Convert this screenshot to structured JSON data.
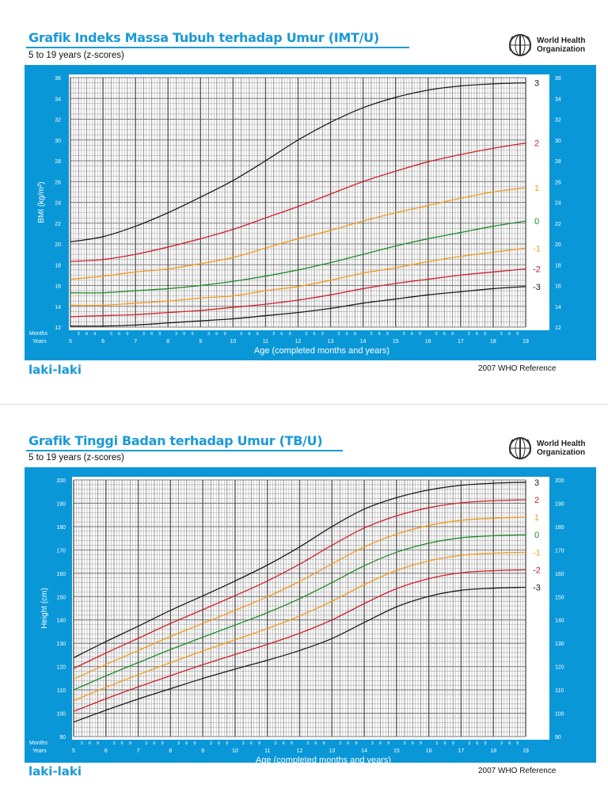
{
  "logo": {
    "org_line1": "World Health",
    "org_line2": "Organization"
  },
  "chart_data": [
    {
      "type": "line",
      "title": "Grafik Indeks Massa Tubuh terhadap Umur (IMT/U)",
      "subtitle": "5 to 19 years (z-scores)",
      "xlabel": "Age (completed months and years)",
      "ylabel": "BMI (kg/m²)",
      "months_label": "Months",
      "years_label": "Years",
      "month_ticks": [
        "3",
        "6",
        "9"
      ],
      "footer_left": "laki-laki",
      "footer_right": "2007 WHO Reference",
      "xlim": [
        5,
        19
      ],
      "ylim": [
        12,
        36
      ],
      "yticks": [
        12,
        14,
        16,
        18,
        20,
        22,
        24,
        26,
        28,
        30,
        32,
        34,
        36
      ],
      "xticks": [
        5,
        6,
        7,
        8,
        9,
        10,
        11,
        12,
        13,
        14,
        15,
        16,
        17,
        18,
        19
      ],
      "grid": true,
      "x": [
        5,
        6,
        7,
        8,
        9,
        10,
        11,
        12,
        13,
        14,
        15,
        16,
        17,
        18,
        19
      ],
      "series": [
        {
          "name": "3",
          "color": "#1a1a1a",
          "values": [
            20.2,
            20.7,
            21.7,
            23.0,
            24.5,
            26.1,
            28.0,
            30.0,
            31.7,
            33.1,
            34.1,
            34.8,
            35.2,
            35.4,
            35.5
          ]
        },
        {
          "name": "2",
          "color": "#d0202a",
          "values": [
            18.3,
            18.5,
            19.0,
            19.7,
            20.5,
            21.4,
            22.5,
            23.6,
            24.8,
            26.0,
            27.0,
            27.9,
            28.6,
            29.2,
            29.7
          ]
        },
        {
          "name": "1",
          "color": "#f39a1e",
          "values": [
            16.6,
            16.9,
            17.3,
            17.6,
            18.1,
            18.7,
            19.6,
            20.5,
            21.3,
            22.2,
            23.0,
            23.7,
            24.4,
            25.0,
            25.4
          ]
        },
        {
          "name": "0",
          "color": "#1f8a2e",
          "values": [
            15.3,
            15.3,
            15.5,
            15.7,
            16.0,
            16.4,
            16.9,
            17.5,
            18.2,
            19.0,
            19.8,
            20.5,
            21.1,
            21.7,
            22.2
          ]
        },
        {
          "name": "-1",
          "color": "#f39a1e",
          "values": [
            14.1,
            14.1,
            14.3,
            14.5,
            14.8,
            15.0,
            15.5,
            15.9,
            16.5,
            17.2,
            17.7,
            18.3,
            18.8,
            19.2,
            19.6
          ]
        },
        {
          "name": "-2",
          "color": "#d0202a",
          "values": [
            13.0,
            13.1,
            13.2,
            13.4,
            13.6,
            13.9,
            14.2,
            14.6,
            15.1,
            15.7,
            16.2,
            16.6,
            17.0,
            17.3,
            17.6
          ]
        },
        {
          "name": "-3",
          "color": "#1a1a1a",
          "values": [
            12.1,
            12.1,
            12.2,
            12.4,
            12.6,
            12.8,
            13.1,
            13.4,
            13.8,
            14.3,
            14.7,
            15.1,
            15.4,
            15.7,
            15.9
          ]
        }
      ]
    },
    {
      "type": "line",
      "title": "Grafik Tinggi Badan terhadap Umur (TB/U)",
      "subtitle": "5 to 19 years (z-scores)",
      "xlabel": "Age (completed months and years)",
      "ylabel": "Height (cm)",
      "months_label": "Months",
      "years_label": "Years",
      "month_ticks": [
        "3",
        "6",
        "9"
      ],
      "footer_left": "laki-laki",
      "footer_right": "2007 WHO Reference",
      "xlim": [
        5,
        19
      ],
      "ylim": [
        90,
        200
      ],
      "yticks": [
        90,
        100,
        110,
        120,
        130,
        140,
        150,
        160,
        170,
        180,
        190,
        200
      ],
      "xticks": [
        5,
        6,
        7,
        8,
        9,
        10,
        11,
        12,
        13,
        14,
        15,
        16,
        17,
        18,
        19
      ],
      "grid": true,
      "x": [
        5,
        6,
        7,
        8,
        9,
        10,
        11,
        12,
        13,
        14,
        15,
        16,
        17,
        18,
        19
      ],
      "series": [
        {
          "name": "3",
          "color": "#1a1a1a",
          "values": [
            123.8,
            130.7,
            137.3,
            144.1,
            150.3,
            156.7,
            163.5,
            171.3,
            180.0,
            187.5,
            192.4,
            195.7,
            197.7,
            198.6,
            199.0
          ]
        },
        {
          "name": "2",
          "color": "#d0202a",
          "values": [
            119.2,
            125.8,
            132.1,
            138.5,
            144.4,
            150.4,
            156.7,
            163.9,
            172.0,
            179.4,
            184.6,
            188.1,
            190.2,
            191.1,
            191.5
          ]
        },
        {
          "name": "1",
          "color": "#f39a1e",
          "values": [
            114.6,
            120.9,
            126.9,
            132.9,
            138.5,
            144.1,
            149.9,
            156.5,
            164.0,
            171.3,
            176.8,
            180.5,
            182.7,
            183.6,
            184.0
          ]
        },
        {
          "name": "0",
          "color": "#1f8a2e",
          "values": [
            110.0,
            116.0,
            121.7,
            127.3,
            132.6,
            137.8,
            143.1,
            149.1,
            156.0,
            163.2,
            169.0,
            172.9,
            175.2,
            176.1,
            176.5
          ]
        },
        {
          "name": "-1",
          "color": "#f39a1e",
          "values": [
            105.4,
            111.1,
            116.5,
            121.7,
            126.7,
            131.5,
            136.3,
            141.7,
            148.0,
            155.1,
            161.2,
            165.3,
            167.7,
            168.6,
            169.0
          ]
        },
        {
          "name": "-2",
          "color": "#d0202a",
          "values": [
            100.8,
            106.2,
            111.3,
            116.1,
            120.8,
            125.2,
            129.5,
            134.3,
            140.0,
            147.0,
            153.4,
            157.7,
            160.2,
            161.1,
            161.5
          ]
        },
        {
          "name": "-3",
          "color": "#1a1a1a",
          "values": [
            96.2,
            101.3,
            106.1,
            110.5,
            114.9,
            118.9,
            122.7,
            126.9,
            132.0,
            138.9,
            145.6,
            150.1,
            152.7,
            153.6,
            154.0
          ]
        }
      ]
    }
  ]
}
